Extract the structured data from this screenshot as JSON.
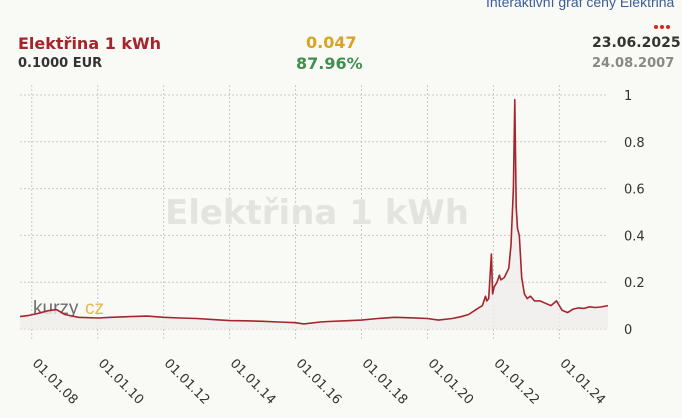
{
  "header": {
    "link_text": "Interaktivní graf ceny Elektřina",
    "title": "Elektřina 1 kWh",
    "price": "0.1000 EUR",
    "change_abs": "0.047",
    "change_pct": "87.96%",
    "date_latest": "23.06.2025",
    "date_start": "24.08.2007"
  },
  "watermark": {
    "text": "Elektřina 1 kWh",
    "logo_a": "kurzy",
    "logo_b": "cz"
  },
  "colors": {
    "line": "#a4262c",
    "title": "#a4262c",
    "change_abs": "#d8a424",
    "change_pct": "#3f8f4e",
    "link": "#3b5f95"
  },
  "chart_data": {
    "type": "line",
    "title": "Elektřina 1 kWh",
    "xlabel": "",
    "ylabel": "",
    "y_axis_side": "right",
    "ylim": [
      0,
      1
    ],
    "xlim": [
      "2007-08-24",
      "2025-06-23"
    ],
    "yticks": [
      0,
      0.2,
      0.4,
      0.6,
      0.8,
      1
    ],
    "ytick_labels": [
      "0",
      "0.2",
      "0.4",
      "0.6",
      "0.8",
      "1"
    ],
    "xticks": [
      "2008-01-01",
      "2010-01-01",
      "2012-01-01",
      "2014-01-01",
      "2016-01-01",
      "2018-01-01",
      "2020-01-01",
      "2022-01-01",
      "2024-01-01"
    ],
    "xtick_labels": [
      "01.01.08",
      "01.01.10",
      "01.01.12",
      "01.01.14",
      "01.01.16",
      "01.01.18",
      "01.01.20",
      "01.01.22",
      "01.01.24"
    ],
    "grid": true,
    "series": [
      {
        "x": [
          "2007-08-24",
          "2007-12-01",
          "2008-03-01",
          "2008-07-01",
          "2008-10-01",
          "2009-01-01",
          "2009-06-01",
          "2010-01-01",
          "2010-06-01",
          "2011-01-01",
          "2011-07-01",
          "2012-01-01",
          "2012-07-01",
          "2013-01-01",
          "2013-07-01",
          "2014-01-01",
          "2014-07-01",
          "2015-01-01",
          "2015-07-01",
          "2016-01-01",
          "2016-04-01",
          "2016-10-01",
          "2017-01-01",
          "2017-07-01",
          "2018-01-01",
          "2018-07-01",
          "2019-01-01",
          "2019-07-01",
          "2020-01-01",
          "2020-05-01",
          "2020-10-01",
          "2021-01-01",
          "2021-04-01",
          "2021-07-01",
          "2021-09-01",
          "2021-10-05",
          "2021-10-20",
          "2021-11-10",
          "2021-12-10",
          "2021-12-23",
          "2022-01-10",
          "2022-02-10",
          "2022-03-08",
          "2022-03-25",
          "2022-05-01",
          "2022-06-20",
          "2022-07-15",
          "2022-08-10",
          "2022-08-26",
          "2022-09-10",
          "2022-09-25",
          "2022-10-15",
          "2022-11-10",
          "2022-12-10",
          "2023-01-10",
          "2023-02-15",
          "2023-04-01",
          "2023-06-01",
          "2023-08-01",
          "2023-10-01",
          "2023-12-01",
          "2024-02-01",
          "2024-04-01",
          "2024-06-01",
          "2024-08-01",
          "2024-10-01",
          "2024-12-01",
          "2025-02-01",
          "2025-04-01",
          "2025-06-23"
        ],
        "y": [
          0.053,
          0.058,
          0.066,
          0.078,
          0.083,
          0.062,
          0.05,
          0.047,
          0.05,
          0.053,
          0.055,
          0.05,
          0.047,
          0.045,
          0.04,
          0.036,
          0.035,
          0.033,
          0.03,
          0.027,
          0.022,
          0.03,
          0.032,
          0.035,
          0.038,
          0.045,
          0.05,
          0.048,
          0.045,
          0.038,
          0.045,
          0.052,
          0.062,
          0.085,
          0.1,
          0.14,
          0.12,
          0.13,
          0.32,
          0.15,
          0.18,
          0.2,
          0.23,
          0.21,
          0.22,
          0.26,
          0.36,
          0.6,
          0.98,
          0.52,
          0.43,
          0.4,
          0.22,
          0.15,
          0.13,
          0.14,
          0.12,
          0.12,
          0.11,
          0.1,
          0.12,
          0.08,
          0.07,
          0.085,
          0.09,
          0.088,
          0.095,
          0.092,
          0.094,
          0.1
        ]
      }
    ]
  }
}
